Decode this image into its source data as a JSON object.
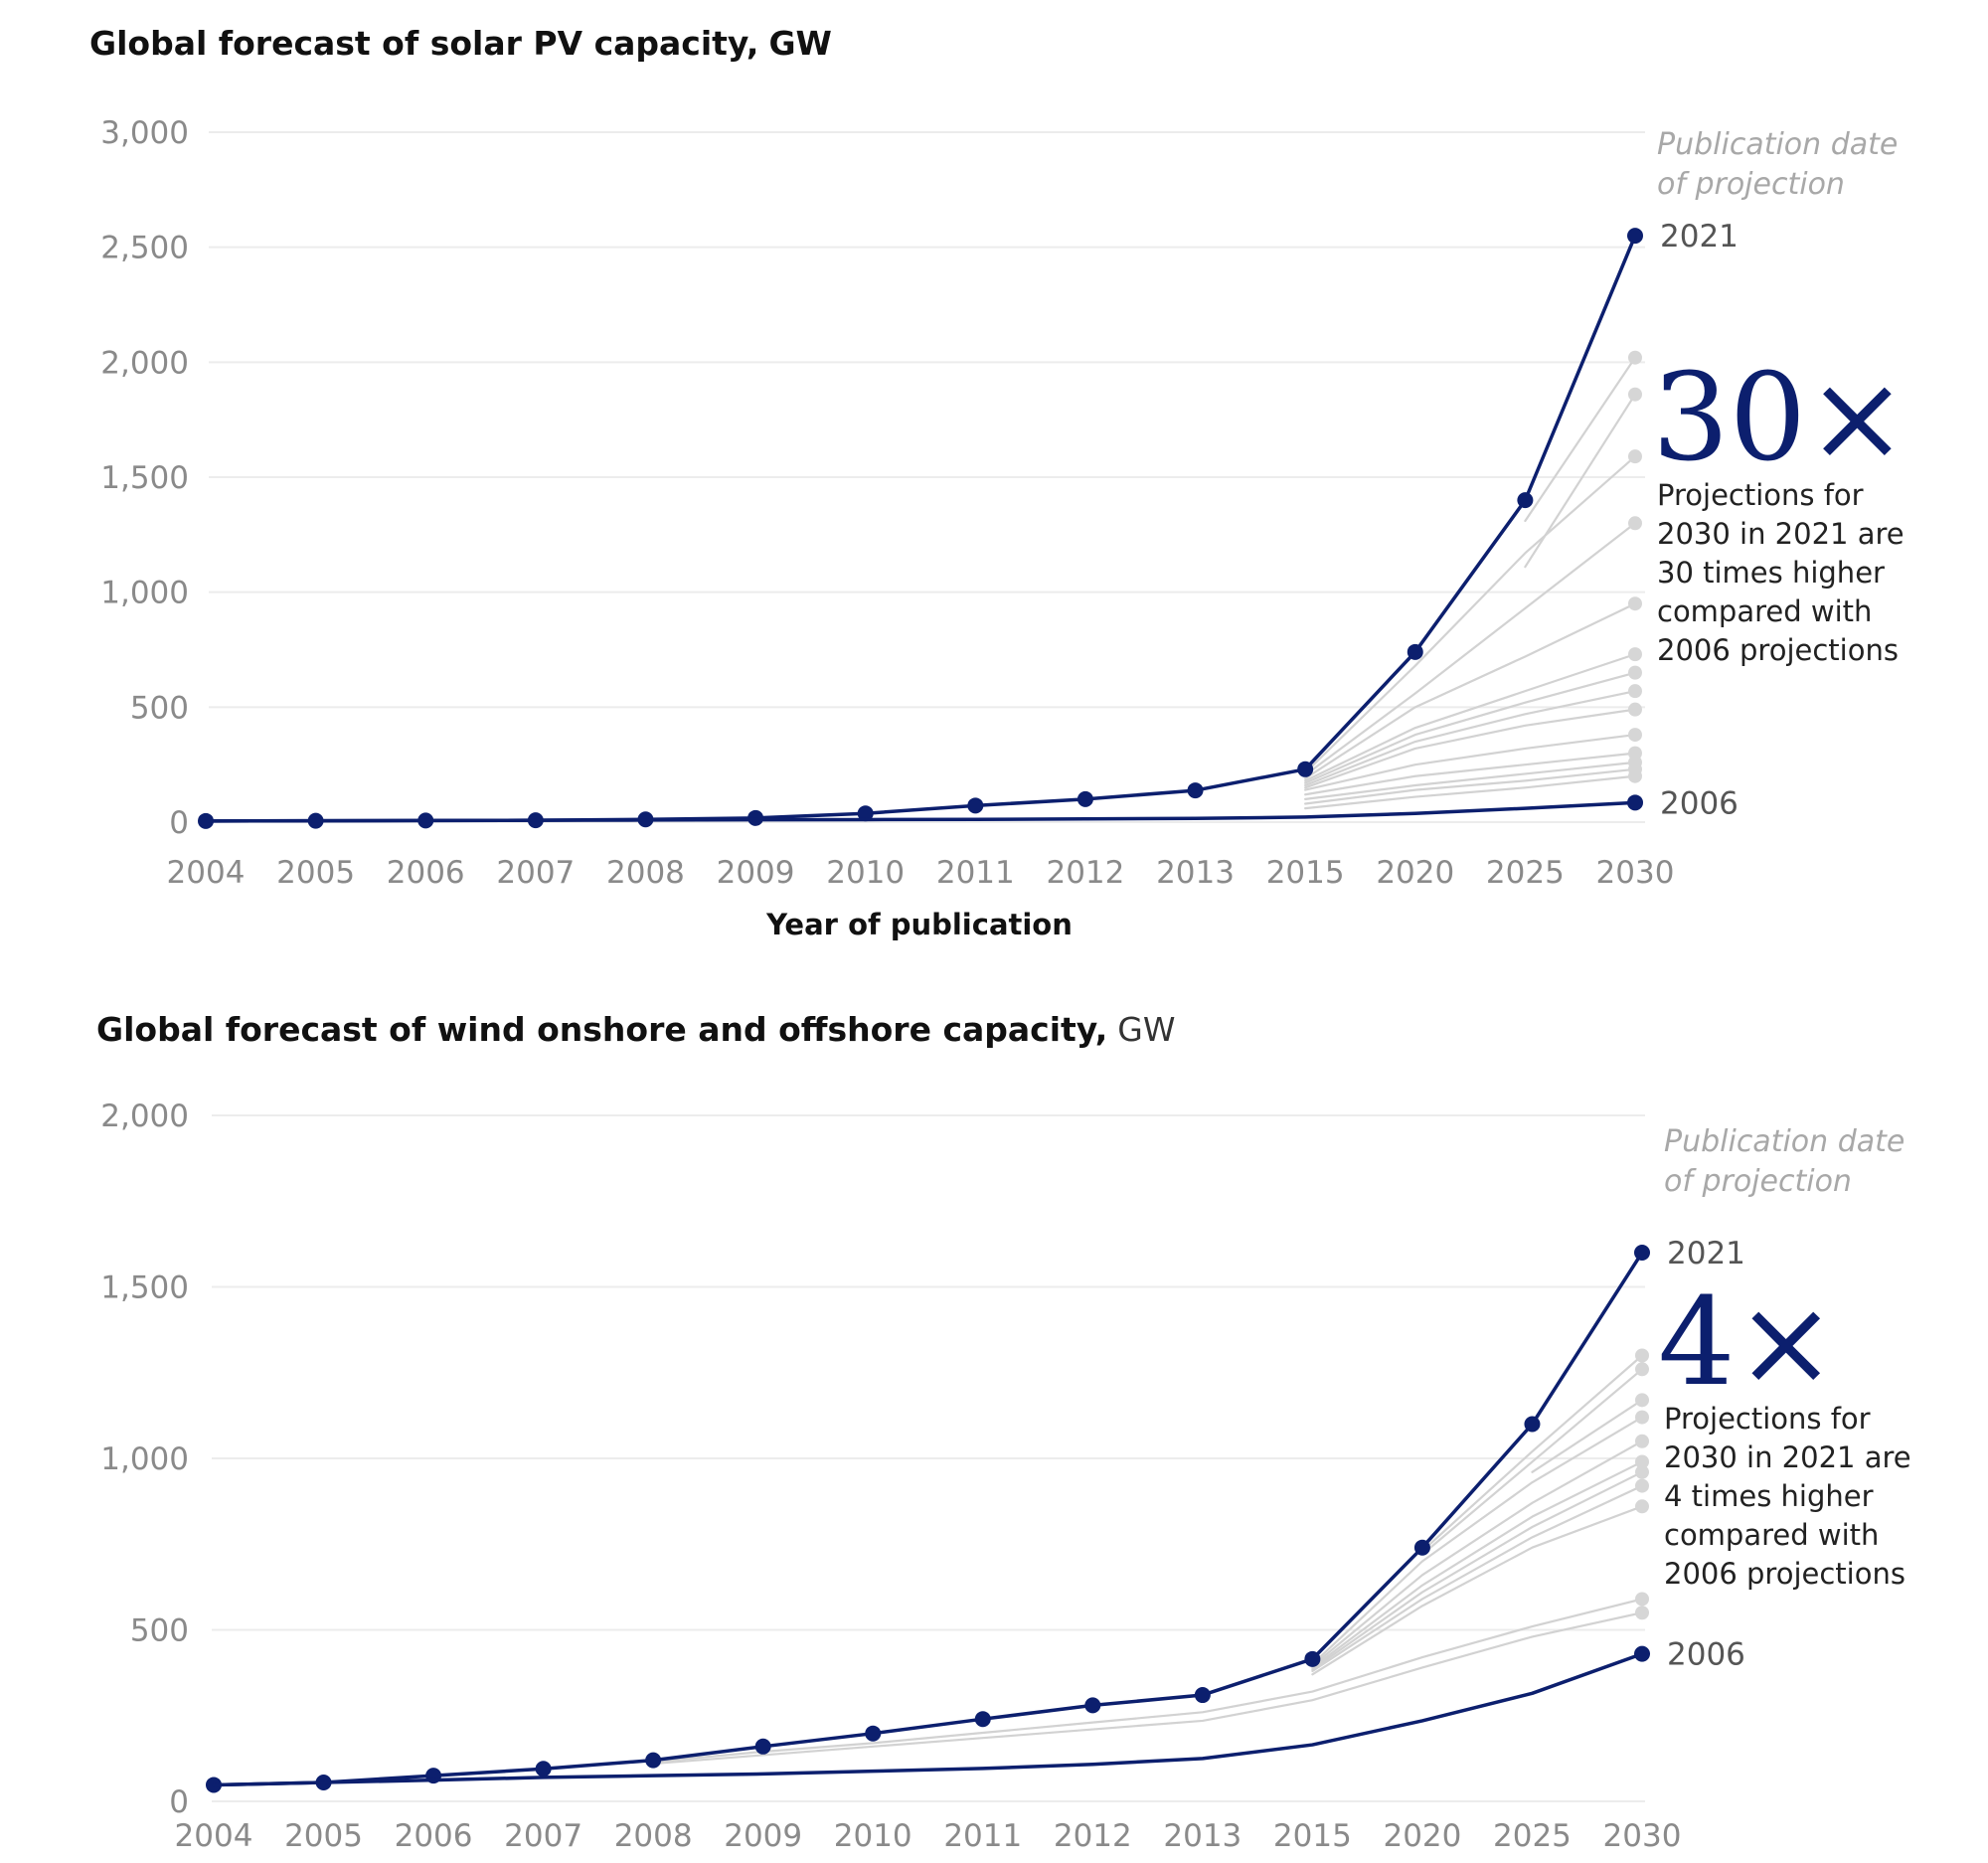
{
  "charts": [
    {
      "title": "Global forecast of solar PV capacity,",
      "unit": "GW",
      "chart_data": {
        "type": "line",
        "title": "Global forecast of solar PV capacity, GW",
        "xlabel": "Year of publication",
        "ylabel": "",
        "categories": [
          "2004",
          "2005",
          "2006",
          "2007",
          "2008",
          "2009",
          "2010",
          "2011",
          "2012",
          "2013",
          "2015",
          "2020",
          "2025",
          "2030"
        ],
        "ylim": [
          0,
          3000
        ],
        "yticks": [
          "3,000",
          "2,500",
          "2,000",
          "1,500",
          "1,000",
          "500",
          "0"
        ],
        "ytick_values": [
          3000,
          2500,
          2000,
          1500,
          1000,
          500,
          0
        ],
        "grid": true,
        "legend_title": [
          "Publication date",
          "of projection"
        ],
        "series": [
          {
            "name": "2021",
            "color": "#0c1f6e",
            "markers": true,
            "values": [
              5,
              6,
              7,
              8,
              12,
              18,
              38,
              72,
              100,
              138,
              230,
              740,
              1400,
              2550
            ]
          },
          {
            "name": "",
            "color": "#d2d2d2",
            "start": 12,
            "values": [
              null,
              null,
              null,
              null,
              null,
              null,
              null,
              null,
              null,
              null,
              null,
              null,
              1310,
              2020
            ]
          },
          {
            "name": "",
            "color": "#d2d2d2",
            "start": 12,
            "values": [
              null,
              null,
              null,
              null,
              null,
              null,
              null,
              null,
              null,
              null,
              null,
              null,
              1110,
              1860
            ]
          },
          {
            "name": "",
            "color": "#d2d2d2",
            "start": 10,
            "values": [
              null,
              null,
              null,
              null,
              null,
              null,
              null,
              null,
              null,
              null,
              215,
              680,
              1170,
              1590
            ]
          },
          {
            "name": "",
            "color": "#d2d2d2",
            "start": 10,
            "values": [
              null,
              null,
              null,
              null,
              null,
              null,
              null,
              null,
              null,
              null,
              205,
              560,
              930,
              1300
            ]
          },
          {
            "name": "",
            "color": "#d2d2d2",
            "start": 10,
            "values": [
              null,
              null,
              null,
              null,
              null,
              null,
              null,
              null,
              null,
              null,
              190,
              500,
              720,
              950
            ]
          },
          {
            "name": "",
            "color": "#d2d2d2",
            "start": 10,
            "values": [
              null,
              null,
              null,
              null,
              null,
              null,
              null,
              null,
              null,
              null,
              180,
              410,
              570,
              730
            ]
          },
          {
            "name": "",
            "color": "#d2d2d2",
            "start": 10,
            "values": [
              null,
              null,
              null,
              null,
              null,
              null,
              null,
              null,
              null,
              null,
              170,
              380,
              520,
              650
            ]
          },
          {
            "name": "",
            "color": "#d2d2d2",
            "start": 10,
            "values": [
              null,
              null,
              null,
              null,
              null,
              null,
              null,
              null,
              null,
              null,
              160,
              350,
              470,
              570
            ]
          },
          {
            "name": "",
            "color": "#d2d2d2",
            "start": 10,
            "values": [
              null,
              null,
              null,
              null,
              null,
              null,
              null,
              null,
              null,
              null,
              150,
              320,
              420,
              490
            ]
          },
          {
            "name": "",
            "color": "#d2d2d2",
            "start": 10,
            "values": [
              null,
              null,
              null,
              null,
              null,
              null,
              null,
              null,
              null,
              null,
              140,
              250,
              320,
              380
            ]
          },
          {
            "name": "",
            "color": "#d2d2d2",
            "start": 10,
            "values": [
              null,
              null,
              null,
              null,
              null,
              null,
              null,
              null,
              null,
              null,
              120,
              200,
              250,
              300
            ]
          },
          {
            "name": "",
            "color": "#d2d2d2",
            "start": 10,
            "values": [
              null,
              null,
              null,
              null,
              null,
              null,
              null,
              null,
              null,
              null,
              100,
              160,
              210,
              260
            ]
          },
          {
            "name": "",
            "color": "#d2d2d2",
            "start": 10,
            "values": [
              null,
              null,
              null,
              null,
              null,
              null,
              null,
              null,
              null,
              null,
              80,
              140,
              180,
              230
            ]
          },
          {
            "name": "",
            "color": "#d2d2d2",
            "start": 10,
            "values": [
              null,
              null,
              null,
              null,
              null,
              null,
              null,
              null,
              null,
              null,
              60,
              110,
              150,
              200
            ]
          },
          {
            "name": "2006",
            "color": "#0c1f6e",
            "markers": false,
            "end_marker": true,
            "values": [
              5,
              6,
              7,
              8,
              9,
              10,
              11,
              12,
              14,
              16,
              22,
              38,
              60,
              85
            ]
          }
        ],
        "annotation": {
          "multiplier": "30×",
          "lines": [
            "Projections for",
            "2030 in 2021 are",
            "30 times higher",
            "compared with",
            "2006 projections"
          ]
        }
      }
    },
    {
      "title": "Global forecast of wind onshore and offshore capacity,",
      "unit": "GW",
      "chart_data": {
        "type": "line",
        "title": "Global forecast of wind onshore and offshore capacity, GW",
        "xlabel": "",
        "ylabel": "",
        "categories": [
          "2004",
          "2005",
          "2006",
          "2007",
          "2008",
          "2009",
          "2010",
          "2011",
          "2012",
          "2013",
          "2015",
          "2020",
          "2025",
          "2030"
        ],
        "ylim": [
          0,
          2000
        ],
        "yticks": [
          "2,000",
          "1,500",
          "1,000",
          "500",
          "0"
        ],
        "ytick_values": [
          2000,
          1500,
          1000,
          500,
          0
        ],
        "grid": true,
        "legend_title": [
          "Publication date",
          "of projection"
        ],
        "series": [
          {
            "name": "2021",
            "color": "#0c1f6e",
            "markers": true,
            "values": [
              48,
              55,
              75,
              95,
              120,
              160,
              198,
              240,
              280,
              310,
              415,
              740,
              1100,
              1600
            ]
          },
          {
            "name": "",
            "color": "#d2d2d2",
            "start": 11,
            "values": [
              null,
              null,
              null,
              null,
              null,
              null,
              null,
              null,
              null,
              null,
              null,
              730,
              1020,
              1300
            ]
          },
          {
            "name": "",
            "color": "#d2d2d2",
            "start": 11,
            "values": [
              null,
              null,
              null,
              null,
              null,
              null,
              null,
              null,
              null,
              null,
              null,
              720,
              990,
              1260
            ]
          },
          {
            "name": "",
            "color": "#d2d2d2",
            "start": 12,
            "values": [
              null,
              null,
              null,
              null,
              null,
              null,
              null,
              null,
              null,
              null,
              null,
              null,
              960,
              1170
            ]
          },
          {
            "name": "",
            "color": "#d2d2d2",
            "start": 10,
            "values": [
              null,
              null,
              null,
              null,
              null,
              null,
              null,
              null,
              null,
              null,
              400,
              700,
              930,
              1120
            ]
          },
          {
            "name": "",
            "color": "#d2d2d2",
            "start": 10,
            "values": [
              null,
              null,
              null,
              null,
              null,
              null,
              null,
              null,
              null,
              null,
              395,
              660,
              870,
              1050
            ]
          },
          {
            "name": "",
            "color": "#d2d2d2",
            "start": 10,
            "values": [
              null,
              null,
              null,
              null,
              null,
              null,
              null,
              null,
              null,
              null,
              390,
              630,
              830,
              990
            ]
          },
          {
            "name": "",
            "color": "#d2d2d2",
            "start": 10,
            "values": [
              null,
              null,
              null,
              null,
              null,
              null,
              null,
              null,
              null,
              null,
              385,
              610,
              800,
              960
            ]
          },
          {
            "name": "",
            "color": "#d2d2d2",
            "start": 10,
            "values": [
              null,
              null,
              null,
              null,
              null,
              null,
              null,
              null,
              null,
              null,
              380,
              590,
              770,
              920
            ]
          },
          {
            "name": "",
            "color": "#d2d2d2",
            "start": 10,
            "values": [
              null,
              null,
              null,
              null,
              null,
              null,
              null,
              null,
              null,
              null,
              370,
              570,
              740,
              860
            ]
          },
          {
            "name": "",
            "color": "#d2d2d2",
            "start": 4,
            "values": [
              null,
              null,
              null,
              null,
              115,
              145,
              170,
              200,
              230,
              260,
              320,
              420,
              510,
              590
            ]
          },
          {
            "name": "",
            "color": "#d2d2d2",
            "start": 4,
            "values": [
              null,
              null,
              null,
              null,
              110,
              135,
              160,
              185,
              210,
              235,
              295,
              390,
              480,
              550
            ]
          },
          {
            "name": "2006",
            "color": "#0c1f6e",
            "markers": false,
            "end_marker": true,
            "values": [
              48,
              55,
              62,
              70,
              75,
              80,
              88,
              96,
              108,
              125,
              165,
              235,
              315,
              430
            ]
          }
        ],
        "annotation": {
          "multiplier": "4×",
          "lines": [
            "Projections for",
            "2030 in 2021 are",
            "4 times higher",
            "compared with",
            "2006 projections"
          ]
        }
      }
    }
  ]
}
